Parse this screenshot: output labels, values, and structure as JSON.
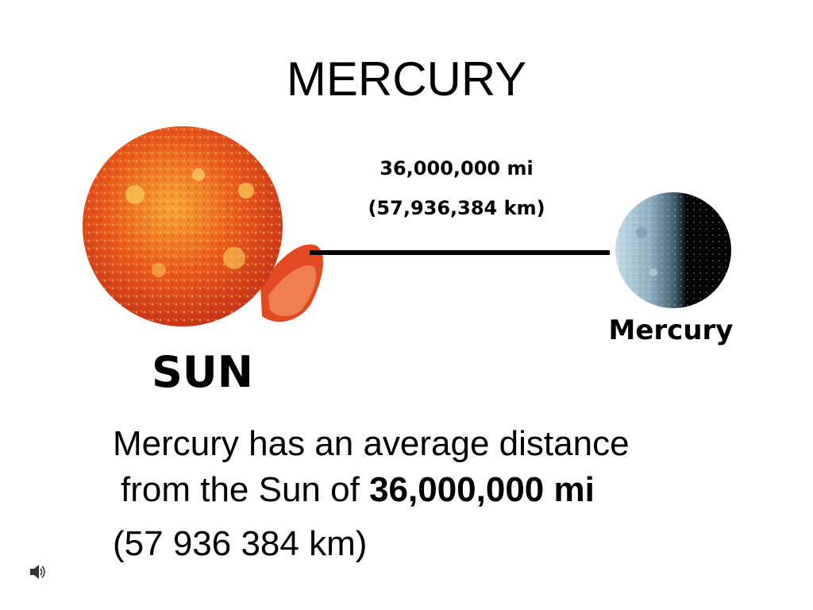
{
  "slide": {
    "title": "MERCURY",
    "distance": {
      "miles": "36,000,000 mi",
      "kilometers": "(57,936,384 km)"
    },
    "labels": {
      "sun": "SUN",
      "planet": "Mercury"
    },
    "body": {
      "line1": "Mercury has an average distance",
      "line2_prefix": "from the Sun of ",
      "line2_bold": "36,000,000 mi",
      "line3": "(57 936 384  km)"
    },
    "colors": {
      "sun": "#e8481a",
      "sun_highlight": "#f6c33a",
      "planet_light": "#a9c4d2",
      "planet_dark": "#000000",
      "line": "#000000"
    },
    "icons": {
      "sun_image": "sun-illustration",
      "planet_image": "mercury-illustration",
      "corner": "speaker-icon"
    }
  }
}
